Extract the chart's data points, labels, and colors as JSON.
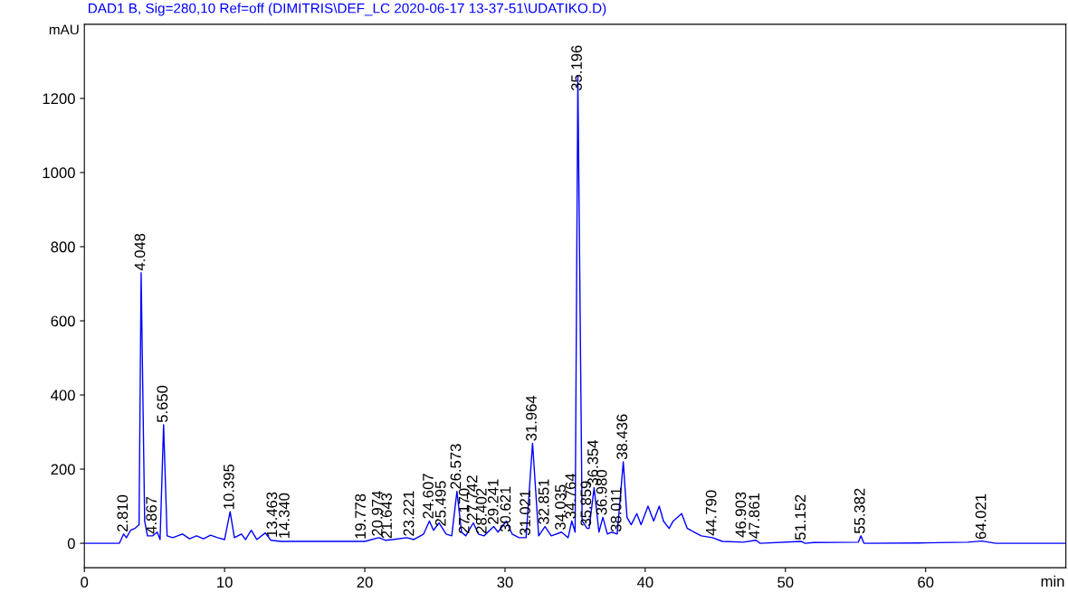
{
  "chart_data": {
    "type": "line",
    "title": "DAD1 B, Sig=280,10 Ref=off (DIMITRIS\\DEF_LC 2020-06-17 13-37-51\\UDATIKO.D)",
    "xlabel": "min",
    "ylabel": "mAU",
    "xlim": [
      0,
      70
    ],
    "ylim": [
      -66,
      1400
    ],
    "xticks": [
      0,
      10,
      20,
      30,
      40,
      50,
      60
    ],
    "yticks": [
      0,
      200,
      400,
      600,
      800,
      1000,
      1200
    ],
    "grid": false,
    "legend": false,
    "marker": "none",
    "line_style": "solid",
    "series": [
      {
        "color": "#0000ff",
        "x": [
          0,
          2.5,
          2.8,
          3.0,
          3.3,
          3.6,
          3.9,
          4.048,
          4.3,
          4.5,
          4.867,
          5.2,
          5.4,
          5.65,
          5.9,
          6.3,
          7,
          7.5,
          8,
          8.5,
          9,
          9.5,
          10.0,
          10.395,
          10.7,
          11.2,
          11.5,
          11.9,
          12.3,
          12.9,
          13.3,
          14,
          15,
          16,
          17,
          18,
          19,
          20,
          21,
          21.5,
          22,
          23,
          23.5,
          24.2,
          24.607,
          24.9,
          25.3,
          25.8,
          26.2,
          26.573,
          26.9,
          27.2,
          27.742,
          28.1,
          28.5,
          29.2,
          29.5,
          30.1,
          30.5,
          31.0,
          31.5,
          31.964,
          32.4,
          32.851,
          33.3,
          34.035,
          34.5,
          34.764,
          35.0,
          35.196,
          35.5,
          35.859,
          36.0,
          36.354,
          36.7,
          36.98,
          37.3,
          37.6,
          38.0,
          38.436,
          38.7,
          39.0,
          39.4,
          39.7,
          40.2,
          40.6,
          41.0,
          41.3,
          41.7,
          42.0,
          42.6,
          43.0,
          43.5,
          44,
          44.8,
          45.5,
          47,
          47.9,
          48.2,
          51.152,
          51.4,
          52,
          55.2,
          55.382,
          55.6,
          60,
          63,
          64.021,
          64.5,
          65,
          70
        ],
        "values": [
          0,
          0,
          25,
          15,
          35,
          40,
          50,
          730,
          60,
          20,
          20,
          30,
          10,
          320,
          20,
          15,
          25,
          12,
          20,
          12,
          22,
          15,
          10,
          85,
          15,
          25,
          10,
          35,
          10,
          28,
          8,
          5,
          5,
          5,
          5,
          5,
          5,
          5,
          15,
          8,
          10,
          15,
          10,
          25,
          60,
          35,
          55,
          25,
          20,
          140,
          30,
          20,
          55,
          25,
          20,
          45,
          30,
          60,
          25,
          15,
          15,
          270,
          20,
          45,
          20,
          30,
          15,
          60,
          30,
          1260,
          60,
          40,
          40,
          150,
          30,
          70,
          25,
          30,
          25,
          220,
          70,
          50,
          80,
          50,
          100,
          60,
          100,
          60,
          40,
          60,
          80,
          40,
          30,
          20,
          15,
          5,
          3,
          8,
          0,
          5,
          0,
          2,
          3,
          20,
          0,
          1,
          3,
          6,
          3,
          0,
          0
        ]
      }
    ],
    "annotations": [
      {
        "text": "2.810",
        "x": 2.81,
        "y": 30
      },
      {
        "text": "4.048",
        "x": 4.048,
        "y": 735
      },
      {
        "text": "4.867",
        "x": 4.867,
        "y": 25
      },
      {
        "text": "5.650",
        "x": 5.65,
        "y": 325
      },
      {
        "text": "10.395",
        "x": 10.395,
        "y": 90
      },
      {
        "text": "13.463",
        "x": 13.463,
        "y": 15
      },
      {
        "text": "14.340",
        "x": 14.34,
        "y": 12
      },
      {
        "text": "19.778",
        "x": 19.778,
        "y": 10
      },
      {
        "text": "20.974",
        "x": 20.974,
        "y": 18
      },
      {
        "text": "21.643",
        "x": 21.643,
        "y": 12
      },
      {
        "text": "23.221",
        "x": 23.221,
        "y": 18
      },
      {
        "text": "24.607",
        "x": 24.607,
        "y": 65
      },
      {
        "text": "25.495",
        "x": 25.495,
        "y": 45
      },
      {
        "text": "26.573",
        "x": 26.573,
        "y": 145
      },
      {
        "text": "27.170",
        "x": 27.17,
        "y": 25
      },
      {
        "text": "27.742",
        "x": 27.742,
        "y": 60
      },
      {
        "text": "28.402",
        "x": 28.402,
        "y": 25
      },
      {
        "text": "29.241",
        "x": 29.241,
        "y": 50
      },
      {
        "text": "30.621",
        "x": 30.621,
        "y": 30
      },
      {
        "text": "31.021",
        "x": 31.021,
        "y": 20
      },
      {
        "text": "31.964",
        "x": 31.964,
        "y": 275
      },
      {
        "text": "32.851",
        "x": 32.851,
        "y": 50
      },
      {
        "text": "34.035",
        "x": 34.035,
        "y": 35
      },
      {
        "text": "34.764",
        "x": 34.764,
        "y": 65
      },
      {
        "text": "35.196",
        "x": 35.196,
        "y": 1220
      },
      {
        "text": "35.859",
        "x": 35.859,
        "y": 45
      },
      {
        "text": "36.354",
        "x": 36.354,
        "y": 155
      },
      {
        "text": "36.980",
        "x": 36.98,
        "y": 75
      },
      {
        "text": "38.011",
        "x": 38.011,
        "y": 30
      },
      {
        "text": "38.436",
        "x": 38.436,
        "y": 225
      },
      {
        "text": "44.790",
        "x": 44.79,
        "y": 20
      },
      {
        "text": "46.903",
        "x": 46.903,
        "y": 15
      },
      {
        "text": "47.861",
        "x": 47.861,
        "y": 12
      },
      {
        "text": "51.152",
        "x": 51.152,
        "y": 8
      },
      {
        "text": "55.382",
        "x": 55.382,
        "y": 25
      },
      {
        "text": "64.021",
        "x": 64.021,
        "y": 10
      }
    ]
  }
}
